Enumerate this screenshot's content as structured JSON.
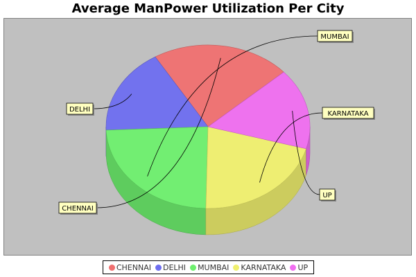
{
  "chart_data": {
    "type": "pie",
    "title": "Average ManPower Utilization Per City",
    "slices": [
      {
        "label": "CHENNAI",
        "value": 22,
        "color": "#f07070"
      },
      {
        "label": "DELHI",
        "value": 17,
        "color": "#6e6ef0"
      },
      {
        "label": "MUMBAI",
        "value": 24,
        "color": "#6ef06e"
      },
      {
        "label": "KARNATAKA",
        "value": 21,
        "color": "#f0f06e"
      },
      {
        "label": "UP",
        "value": 16,
        "color": "#f06ef0"
      }
    ],
    "style": "3d",
    "legend_position": "bottom",
    "background": "#c0c0c0"
  }
}
